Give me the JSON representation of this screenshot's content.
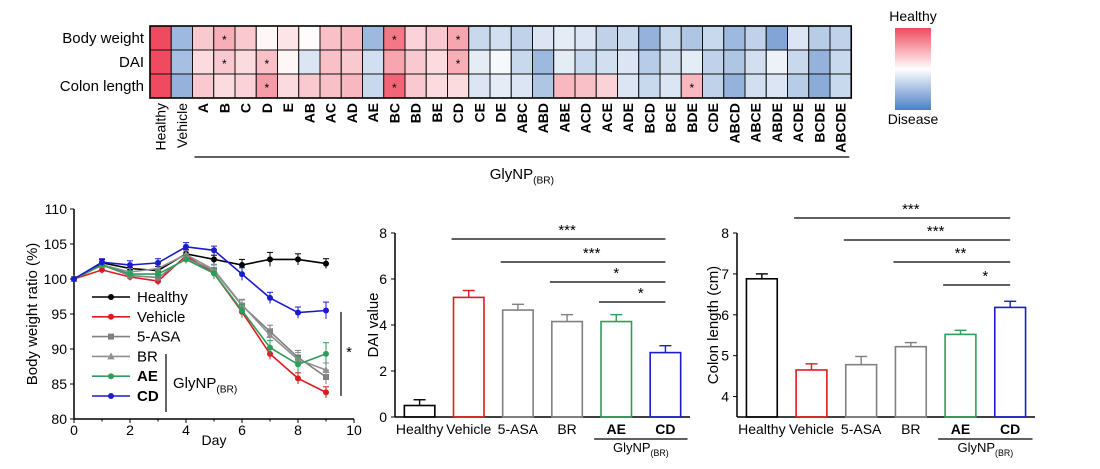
{
  "heatmap_colors": {
    "healthy": "#ef4a5f",
    "neutral": "#ffffff",
    "disease": "#4c7fc4"
  },
  "chart_data": [
    {
      "type": "heatmap",
      "rows": [
        "Body weight",
        "DAI",
        "Colon length"
      ],
      "columns": [
        "Healthy",
        "Vehicle",
        "A",
        "B",
        "C",
        "D",
        "E",
        "AB",
        "AC",
        "AD",
        "AE",
        "BC",
        "BD",
        "BE",
        "CD",
        "CE",
        "DE",
        "ABC",
        "ABD",
        "ABE",
        "ACD",
        "ACE",
        "ADE",
        "BCD",
        "BCE",
        "BDE",
        "CDE",
        "ABCD",
        "ABCE",
        "ABDE",
        "ACDE",
        "BCDE",
        "ABCDE"
      ],
      "values": [
        [
          1.0,
          -0.55,
          0.3,
          0.45,
          0.3,
          0.05,
          0.15,
          0.02,
          0.35,
          0.4,
          -0.55,
          0.75,
          0.25,
          0.3,
          0.5,
          -0.3,
          -0.25,
          -0.35,
          -0.2,
          -0.15,
          -0.2,
          -0.35,
          -0.3,
          -0.6,
          -0.3,
          -0.45,
          -0.3,
          -0.55,
          -0.35,
          -0.7,
          -0.2,
          -0.4,
          -0.35
        ],
        [
          1.0,
          -0.5,
          0.2,
          0.3,
          0.2,
          0.35,
          0.05,
          -0.2,
          0.35,
          0.3,
          -0.25,
          0.5,
          0.3,
          0.2,
          0.45,
          -0.15,
          -0.05,
          -0.3,
          -0.55,
          -0.15,
          -0.3,
          -0.25,
          -0.2,
          -0.4,
          -0.25,
          -0.15,
          -0.35,
          -0.45,
          -0.25,
          -0.1,
          -0.3,
          -0.6,
          -0.3
        ],
        [
          1.0,
          -0.6,
          0.3,
          0.2,
          0.25,
          0.55,
          0.2,
          0.3,
          0.35,
          0.4,
          -0.3,
          0.85,
          0.3,
          0.2,
          0.2,
          -0.2,
          -0.15,
          -0.2,
          -0.45,
          0.4,
          0.35,
          0.25,
          -0.2,
          -0.3,
          -0.2,
          0.4,
          -0.35,
          -0.6,
          -0.25,
          -0.2,
          -0.4,
          -0.65,
          -0.3
        ]
      ],
      "significance": [
        {
          "row": 0,
          "col": "B",
          "mark": "*"
        },
        {
          "row": 0,
          "col": "BC",
          "mark": "*"
        },
        {
          "row": 0,
          "col": "CD",
          "mark": "*"
        },
        {
          "row": 1,
          "col": "B",
          "mark": "*"
        },
        {
          "row": 1,
          "col": "D",
          "mark": "*"
        },
        {
          "row": 1,
          "col": "CD",
          "mark": "*"
        },
        {
          "row": 2,
          "col": "D",
          "mark": "*"
        },
        {
          "row": 2,
          "col": "BC",
          "mark": "*"
        },
        {
          "row": 2,
          "col": "BDE",
          "mark": "*"
        }
      ],
      "group_label": "GlyNP",
      "group_label_sub": "(BR)",
      "colorbar": {
        "top": "Healthy",
        "bottom": "Disease"
      }
    },
    {
      "type": "line",
      "xlabel": "Day",
      "ylabel": "Body weight ratio (%)",
      "xlim": [
        0,
        10
      ],
      "ylim": [
        80,
        110
      ],
      "xticks": [
        0,
        2,
        4,
        6,
        8,
        10
      ],
      "yticks": [
        80,
        85,
        90,
        95,
        100,
        105,
        110
      ],
      "x": [
        0,
        1,
        2,
        3,
        4,
        5,
        6,
        7,
        8,
        9
      ],
      "series": [
        {
          "name": "Healthy",
          "color": "#000000",
          "marker": "circle",
          "values": [
            100,
            102.3,
            101.5,
            101.2,
            103.6,
            102.8,
            102,
            102.8,
            102.8,
            102.2
          ],
          "err": [
            0,
            0.5,
            0.5,
            0.6,
            0.6,
            0.6,
            0.8,
            1,
            0.8,
            0.7
          ]
        },
        {
          "name": "Vehicle",
          "color": "#e0191f",
          "marker": "circle",
          "values": [
            100,
            101.3,
            100.3,
            99.7,
            103.3,
            100.8,
            95.3,
            89.3,
            85.8,
            83.8
          ],
          "err": [
            0,
            0.5,
            0.5,
            0.6,
            0.8,
            0.8,
            0.8,
            0.8,
            0.8,
            0.8
          ]
        },
        {
          "name": "5-ASA",
          "color": "#808080",
          "marker": "square",
          "values": [
            100,
            102,
            100.5,
            100.2,
            103,
            101.2,
            96.2,
            92.5,
            88.8,
            86
          ],
          "err": [
            0,
            0.5,
            0.5,
            0.6,
            0.6,
            0.8,
            0.8,
            0.9,
            1,
            1
          ]
        },
        {
          "name": "BR",
          "color": "#909090",
          "marker": "triangle",
          "values": [
            100,
            102,
            101,
            101.5,
            103.5,
            101.3,
            96.3,
            92,
            88.5,
            87
          ],
          "err": [
            0,
            0.5,
            0.5,
            0.6,
            0.6,
            0.8,
            0.8,
            0.9,
            1,
            1
          ]
        },
        {
          "name": "AE",
          "color": "#2e9c5a",
          "marker": "circle",
          "values": [
            100,
            102,
            100.7,
            100.7,
            102.8,
            100.8,
            95.5,
            90.2,
            87.8,
            89.3
          ],
          "err": [
            0,
            0.5,
            0.5,
            0.6,
            0.6,
            0.8,
            0.9,
            1,
            1.2,
            1.6
          ]
        },
        {
          "name": "CD",
          "color": "#1c1ccf",
          "marker": "circle",
          "values": [
            100,
            102.4,
            102,
            102.3,
            104.6,
            104.1,
            100.7,
            97.3,
            95.2,
            95.5
          ],
          "err": [
            0,
            0.5,
            0.6,
            0.6,
            0.6,
            0.6,
            0.9,
            0.8,
            0.8,
            1.2
          ]
        }
      ],
      "legend_group_label": "GlyNP",
      "legend_group_sub": "(BR)",
      "annotation": "*"
    },
    {
      "type": "bar",
      "ylabel": "DAI value",
      "ylim": [
        0,
        8
      ],
      "yticks": [
        0,
        2,
        4,
        6,
        8
      ],
      "categories": [
        "Healthy",
        "Vehicle",
        "5-ASA",
        "BR",
        "AE",
        "CD"
      ],
      "values": [
        0.5,
        5.2,
        4.65,
        4.15,
        4.15,
        2.8
      ],
      "err": [
        0.25,
        0.3,
        0.25,
        0.3,
        0.3,
        0.3
      ],
      "colors": [
        "#000000",
        "#e0191f",
        "#808080",
        "#808080",
        "#2e9c5a",
        "#1c1ccf"
      ],
      "group_label": "GlyNP",
      "group_label_sub": "(BR)",
      "comparisons": [
        {
          "from": 1,
          "to": 5,
          "label": "***"
        },
        {
          "from": 2,
          "to": 5,
          "label": "***"
        },
        {
          "from": 3,
          "to": 5,
          "label": "*"
        },
        {
          "from": 4,
          "to": 5,
          "label": "*"
        }
      ]
    },
    {
      "type": "bar",
      "ylabel": "Colon length (cm)",
      "ylim": [
        3.5,
        8
      ],
      "yticks": [
        4,
        5,
        6,
        7,
        8
      ],
      "categories": [
        "Healthy",
        "Vehicle",
        "5-ASA",
        "BR",
        "AE",
        "CD"
      ],
      "values": [
        6.88,
        4.65,
        4.78,
        5.22,
        5.52,
        6.18
      ],
      "err": [
        0.12,
        0.15,
        0.2,
        0.1,
        0.1,
        0.15
      ],
      "colors": [
        "#000000",
        "#e0191f",
        "#808080",
        "#808080",
        "#2e9c5a",
        "#1c1ccf"
      ],
      "group_label": "GlyNP",
      "group_label_sub": "(BR)",
      "comparisons": [
        {
          "from": 1,
          "to": 5,
          "label": "***"
        },
        {
          "from": 2,
          "to": 5,
          "label": "***"
        },
        {
          "from": 3,
          "to": 5,
          "label": "**"
        },
        {
          "from": 4,
          "to": 5,
          "label": "*"
        }
      ]
    }
  ]
}
